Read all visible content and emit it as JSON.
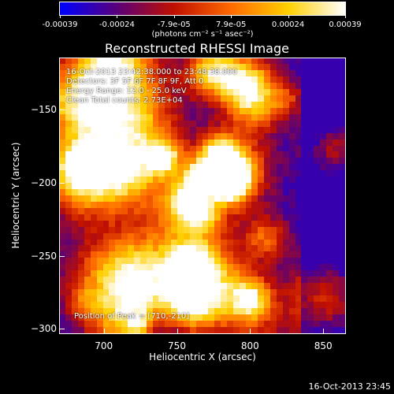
{
  "colorbar": {
    "labels": [
      "-0.00039",
      "-0.00024",
      "-7.9e-05",
      "7.9e-05",
      "0.00024",
      "0.00039"
    ],
    "units": "(photons cm⁻² s⁻¹ asec⁻²)",
    "range": [
      -0.00039,
      0.00039
    ]
  },
  "info": {
    "time_range": "16-Oct-2013 23:42:38.000 to 23:48:38.000",
    "detectors": "Detectors: 3F 5F 6F 7F 8F 9F, Att 0",
    "energy": "Energy Range: 12.0 - 25.0 keV",
    "clean": "Clean    Total counts: 2.73E+04",
    "peak": "Position of Peak = [710,-210]"
  },
  "timestamp": "16-Oct-2013 23:45",
  "chart_data": {
    "type": "heatmap",
    "title": "Reconstructed RHESSI Image",
    "xlabel": "Heliocentric X (arcsec)",
    "ylabel": "Heliocentric Y (arcsec)",
    "xlim": [
      670,
      865
    ],
    "ylim": [
      -303,
      -115
    ],
    "xticks": [
      700,
      750,
      800,
      850
    ],
    "yticks": [
      -150,
      -200,
      -250,
      -300
    ],
    "grid": false,
    "colormap": [
      "#0000ff",
      "#5a007a",
      "#c01000",
      "#ff6a00",
      "#ffd000",
      "#ffffff"
    ]
  }
}
